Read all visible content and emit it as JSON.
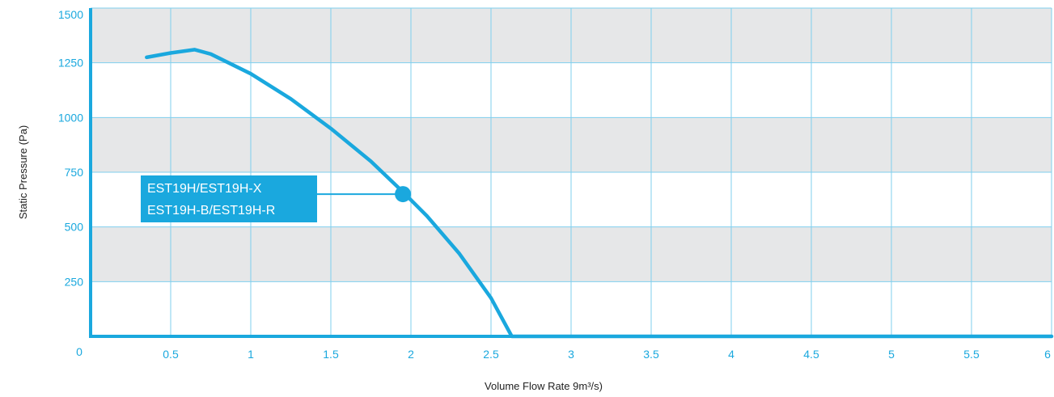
{
  "chart_data": {
    "type": "line",
    "title": "",
    "xlabel": "Volume Flow Rate 9m³/s)",
    "ylabel": "Static Pressure (Pa)",
    "xlim": [
      0,
      6
    ],
    "ylim": [
      0,
      1500
    ],
    "x_ticks": [
      0.5,
      1,
      1.5,
      2,
      2.5,
      3,
      3.5,
      4,
      4.5,
      5,
      5.5,
      6
    ],
    "x_tick_labels": [
      "0.5",
      "1",
      "1.5",
      "2",
      "2.5",
      "3",
      "3.5",
      "4",
      "4.5",
      "5",
      "5.5",
      "6"
    ],
    "y_ticks": [
      250,
      500,
      750,
      1000,
      1250,
      1500
    ],
    "y_tick_labels": [
      "250",
      "500",
      "750",
      "1000",
      "1250",
      "1500"
    ],
    "origin_label": "0",
    "x_grid_step": 0.5,
    "y_grid_step": 250,
    "grid": true,
    "band_shading": "alternating grey bands between y gridlines",
    "series": [
      {
        "color": "#1aa8de",
        "x": [
          0.35,
          0.5,
          0.65,
          0.75,
          1.0,
          1.25,
          1.5,
          1.75,
          1.95,
          2.1,
          2.3,
          2.5,
          2.63,
          3.0,
          6.0
        ],
        "y": [
          1275,
          1295,
          1310,
          1290,
          1200,
          1085,
          950,
          800,
          660,
          550,
          380,
          175,
          0,
          0,
          0
        ]
      }
    ],
    "marker": {
      "x": 1.95,
      "y": 650
    },
    "callout": {
      "lines": [
        "EST19H/EST19H-X",
        "EST19H-B/EST19H-R"
      ]
    },
    "colors": {
      "accent": "#1aa8de",
      "band": "#e6e7e8",
      "grid": "#7fcfee"
    }
  }
}
